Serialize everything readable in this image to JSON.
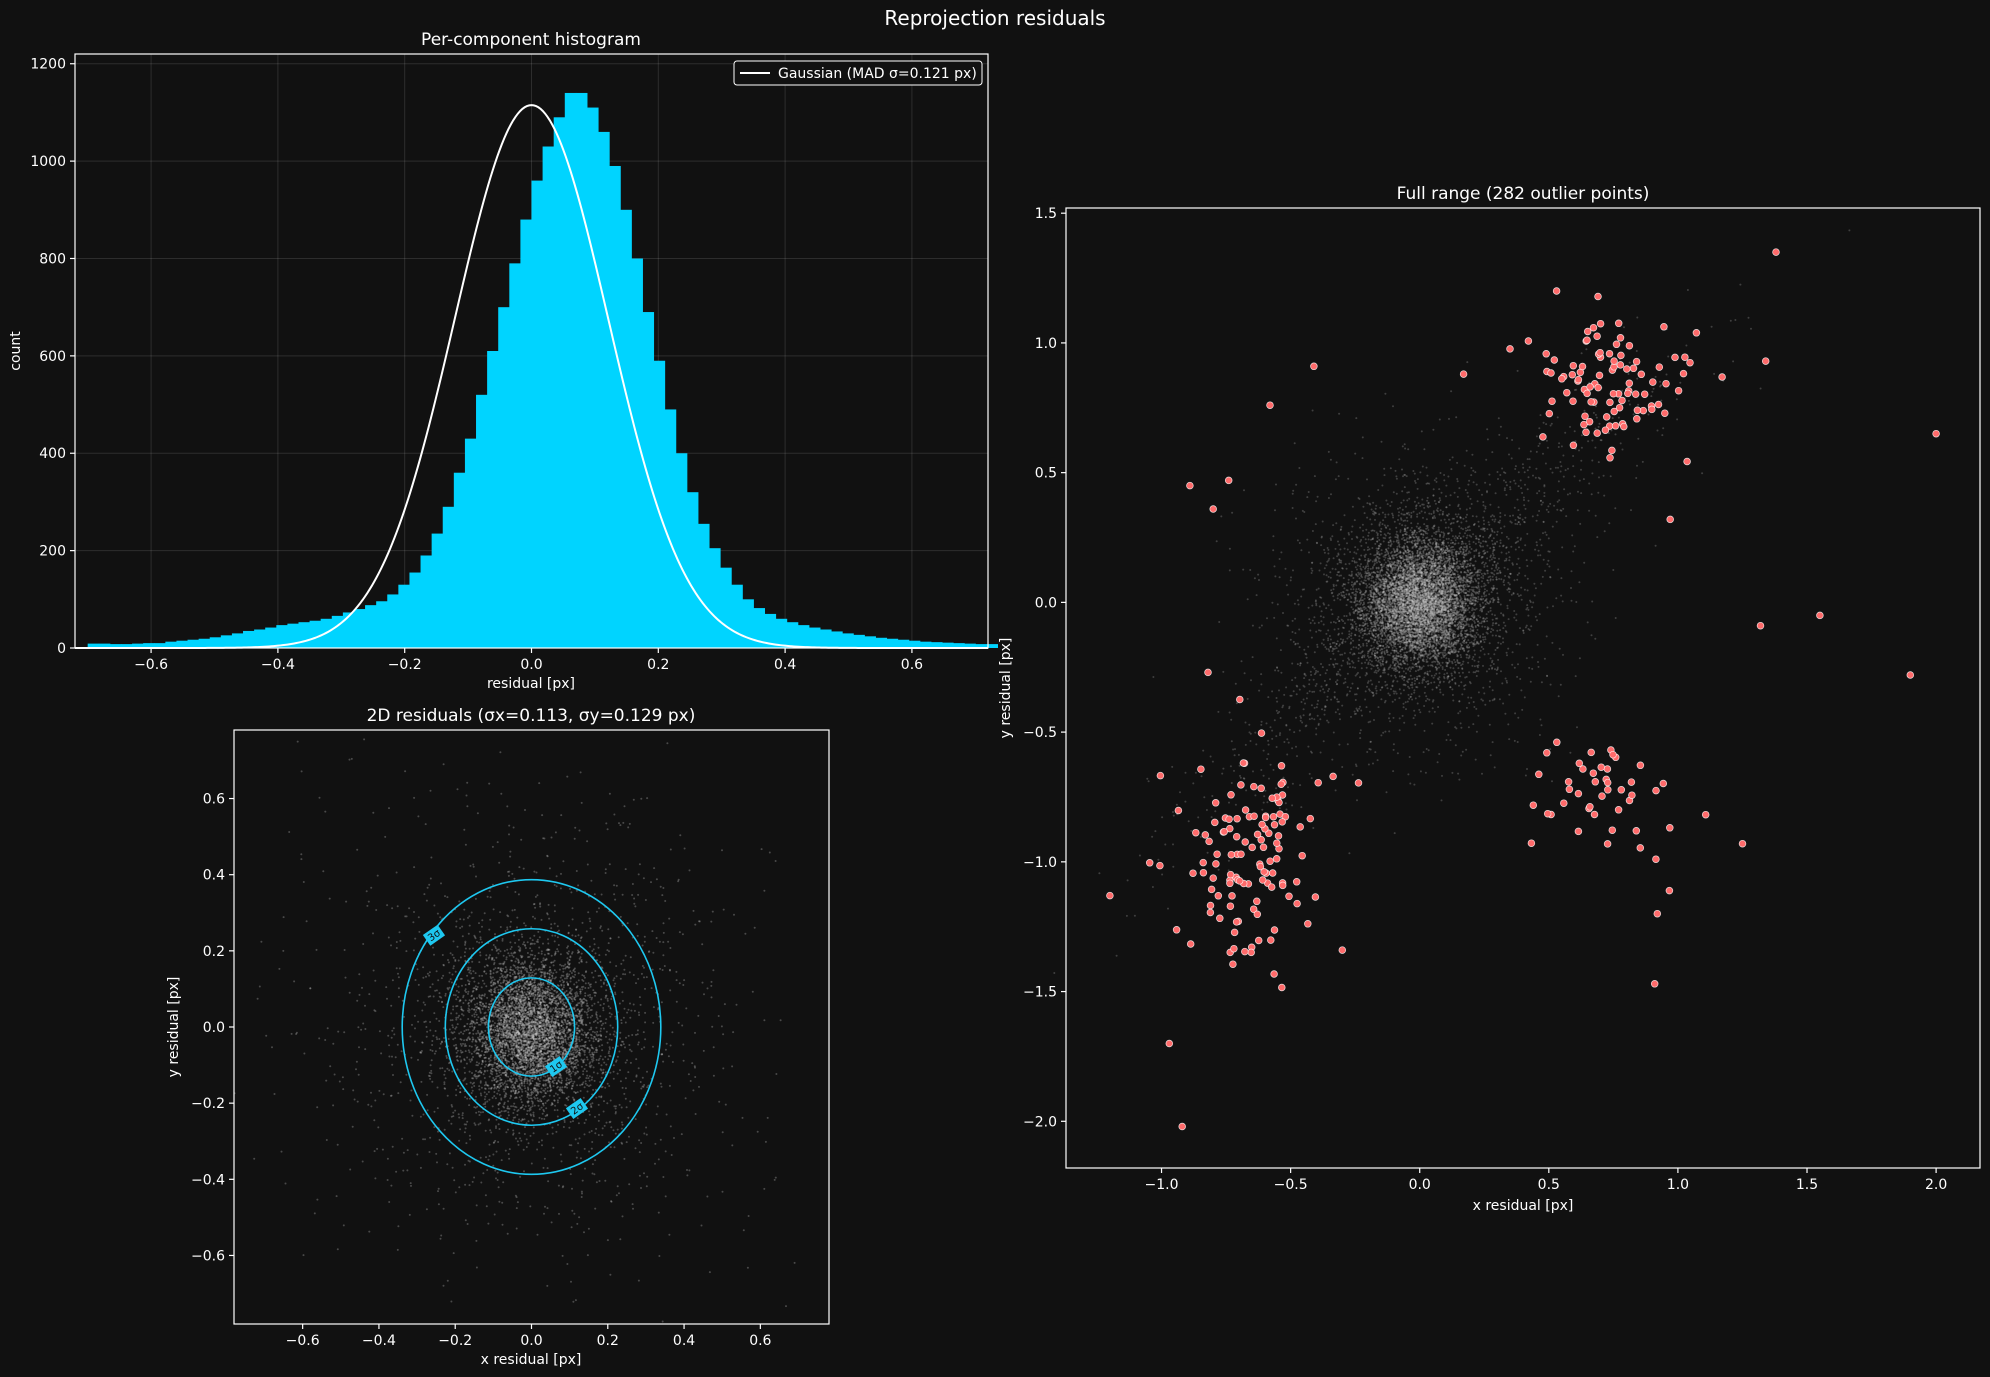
{
  "figure": {
    "suptitle": "Reprojection residuals",
    "colors": {
      "background": "#111111",
      "histogram": "#00d4ff",
      "gaussian": "#ffffff",
      "inlier_points": "#cccccc",
      "contours": "#1ec8f0",
      "outliers": "#ff6b6b"
    }
  },
  "chart_data": [
    {
      "id": "histogram",
      "type": "bar",
      "title": "Per-component histogram",
      "xlabel": "residual [px]",
      "ylabel": "count",
      "xlim": [
        -0.72,
        0.72
      ],
      "ylim": [
        0,
        1220
      ],
      "xticks": [
        -0.6,
        -0.4,
        -0.2,
        0.0,
        0.2,
        0.4,
        0.6
      ],
      "xtick_labels": [
        "−0.6",
        "−0.4",
        "−0.2",
        "0.0",
        "0.2",
        "0.4",
        "0.6"
      ],
      "yticks": [
        0,
        200,
        400,
        600,
        800,
        1000,
        1200
      ],
      "ytick_labels": [
        "0",
        "200",
        "400",
        "600",
        "800",
        "1000",
        "1200"
      ],
      "grid": true,
      "legend_position": "top-right",
      "legend": [
        {
          "name": "Gaussian (MAD σ=0.121 px)",
          "kind": "line"
        }
      ],
      "bin_start": -0.7,
      "bin_width": 0.0175,
      "counts": [
        9,
        9,
        8,
        8,
        9,
        10,
        10,
        13,
        15,
        17,
        19,
        22,
        26,
        30,
        35,
        38,
        42,
        47,
        50,
        53,
        56,
        60,
        66,
        73,
        80,
        88,
        96,
        110,
        130,
        155,
        190,
        235,
        290,
        360,
        430,
        520,
        610,
        700,
        790,
        880,
        960,
        1030,
        1090,
        1140,
        1140,
        1110,
        1060,
        990,
        900,
        800,
        690,
        590,
        490,
        400,
        320,
        255,
        205,
        165,
        130,
        100,
        82,
        70,
        60,
        53,
        47,
        42,
        38,
        34,
        30,
        27,
        24,
        21,
        19,
        17,
        15,
        13,
        12,
        11,
        10,
        9,
        8,
        8
      ],
      "gaussian": {
        "name": "Gaussian (MAD σ=0.121 px)",
        "mu": 0.0,
        "sigma": 0.121,
        "peak": 1115
      }
    },
    {
      "id": "scatter2d",
      "type": "scatter",
      "title": "2D residuals (σx=0.113, σy=0.129 px)",
      "xlabel": "x residual [px]",
      "ylabel": "y residual [px]",
      "xlim": [
        -0.78,
        0.78
      ],
      "ylim": [
        -0.78,
        0.78
      ],
      "xticks": [
        -0.6,
        -0.4,
        -0.2,
        0.0,
        0.2,
        0.4,
        0.6
      ],
      "xtick_labels": [
        "−0.6",
        "−0.4",
        "−0.2",
        "0.0",
        "0.2",
        "0.4",
        "0.6"
      ],
      "yticks": [
        -0.6,
        -0.4,
        -0.2,
        0.0,
        0.2,
        0.4,
        0.6
      ],
      "ytick_labels": [
        "−0.6",
        "−0.4",
        "−0.2",
        "0.0",
        "0.2",
        "0.4",
        "0.6"
      ],
      "sigma_x": 0.113,
      "sigma_y": 0.129,
      "point_cloud": {
        "n": 6000,
        "center": [
          0.0,
          -0.01
        ]
      },
      "contours": [
        {
          "label": "1σ",
          "cx": 0.0,
          "cy": 0.0,
          "rx": 0.113,
          "ry": 0.129,
          "label_at": [
            0.065,
            -0.105
          ]
        },
        {
          "label": "2σ",
          "cx": 0.0,
          "cy": 0.0,
          "rx": 0.226,
          "ry": 0.258,
          "label_at": [
            0.12,
            -0.215
          ]
        },
        {
          "label": "3σ",
          "cx": 0.0,
          "cy": 0.0,
          "rx": 0.339,
          "ry": 0.387,
          "label_at": [
            -0.255,
            0.24
          ]
        }
      ]
    },
    {
      "id": "fullrange",
      "type": "scatter",
      "title": "Full range (282 outlier points)",
      "xlabel": "x residual [px]",
      "ylabel": "y residual [px]",
      "xlim": [
        -1.37,
        2.17
      ],
      "ylim": [
        -2.18,
        1.52
      ],
      "xticks": [
        -1.0,
        -0.5,
        0.0,
        0.5,
        1.0,
        1.5,
        2.0
      ],
      "xtick_labels": [
        "−1.0",
        "−0.5",
        "0.0",
        "0.5",
        "1.0",
        "1.5",
        "2.0"
      ],
      "yticks": [
        -2.0,
        -1.5,
        -1.0,
        -0.5,
        0.0,
        0.5,
        1.0,
        1.5
      ],
      "ytick_labels": [
        "−2.0",
        "−1.5",
        "−1.0",
        "−0.5",
        "0.0",
        "0.5",
        "1.0",
        "1.5"
      ],
      "outlier_count": 282,
      "outlier_clusters": [
        {
          "center": [
            0.75,
            0.85
          ],
          "spread": [
            0.17,
            0.14
          ],
          "n": 95
        },
        {
          "center": [
            -0.65,
            -1.0
          ],
          "spread": [
            0.13,
            0.22
          ],
          "n": 120
        },
        {
          "center": [
            0.7,
            -0.75
          ],
          "spread": [
            0.15,
            0.12
          ],
          "n": 45
        }
      ],
      "outliers_isolated": [
        [
          -1.2,
          -1.13
        ],
        [
          2.0,
          0.65
        ],
        [
          1.9,
          -0.28
        ],
        [
          1.55,
          -0.05
        ],
        [
          1.32,
          -0.09
        ],
        [
          -0.82,
          -0.27
        ],
        [
          -0.92,
          -2.02
        ],
        [
          -0.97,
          -1.7
        ],
        [
          0.91,
          -1.47
        ],
        [
          -0.41,
          0.91
        ],
        [
          -0.89,
          0.45
        ],
        [
          -0.8,
          0.36
        ],
        [
          -0.74,
          0.47
        ],
        [
          -0.58,
          0.76
        ],
        [
          0.17,
          0.88
        ],
        [
          1.38,
          1.35
        ],
        [
          0.97,
          0.32
        ],
        [
          1.34,
          0.93
        ],
        [
          1.25,
          -0.93
        ],
        [
          -0.3,
          -1.34
        ],
        [
          0.53,
          1.2
        ],
        [
          0.92,
          -1.2
        ]
      ]
    }
  ]
}
